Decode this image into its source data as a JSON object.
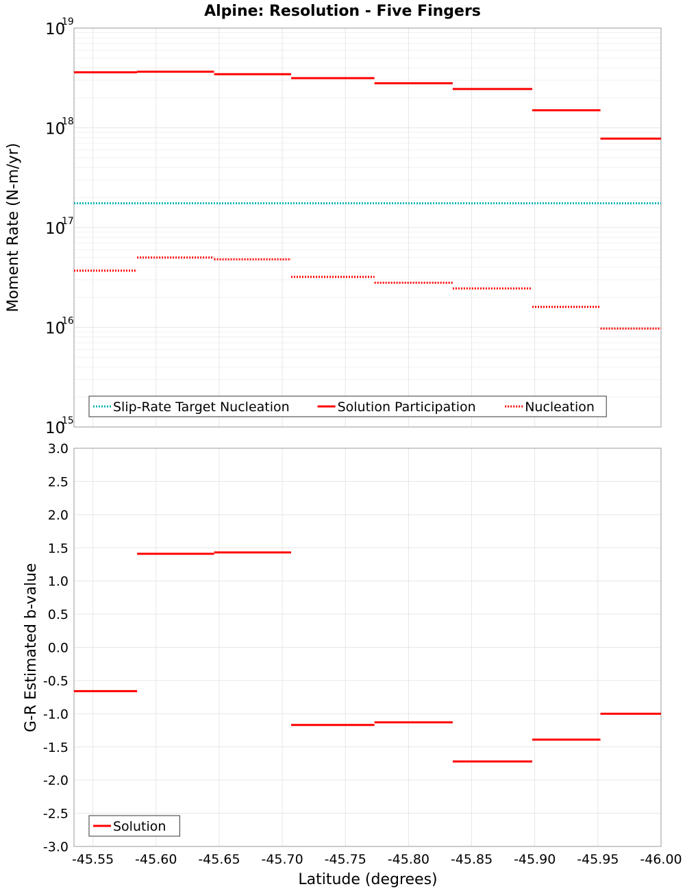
{
  "title": "Alpine: Resolution - Five Fingers",
  "colors": {
    "solution": "#ff0000",
    "target": "#00b3b3",
    "grid": "#e6e6e6",
    "minor_grid": "#f0f0f0",
    "frame": "#999999"
  },
  "chart_data": [
    {
      "type": "line",
      "panel": "top",
      "ylabel": "Moment Rate (N-m/yr)",
      "yscale": "log",
      "ylim": [
        1000000000000000.0,
        1e+19
      ],
      "ytick_base": "10",
      "ytick_exponents": [
        "15",
        "16",
        "17",
        "18",
        "19"
      ],
      "xlim": [
        -45.535,
        -46.0
      ],
      "legend_position": "bottom-left",
      "legend": [
        {
          "label": "Slip-Rate Target Nucleation",
          "color": "#00b3b3",
          "style": "dotted"
        },
        {
          "label": "Solution Participation",
          "color": "#ff0000",
          "style": "solid"
        },
        {
          "label": "Nucleation",
          "color": "#ff0000",
          "style": "dotted"
        }
      ],
      "series": [
        {
          "name": "Slip-Rate Target Nucleation",
          "style": "dotted",
          "color": "#00b3b3",
          "segments": [
            {
              "x0": -45.535,
              "x1": -46.0,
              "y": 1.75e+17
            }
          ]
        },
        {
          "name": "Solution Participation",
          "style": "solid",
          "color": "#ff0000",
          "segments": [
            {
              "x0": -45.535,
              "x1": -45.585,
              "y": 3.6e+18
            },
            {
              "x0": -45.585,
              "x1": -45.646,
              "y": 3.65e+18
            },
            {
              "x0": -45.646,
              "x1": -45.707,
              "y": 3.45e+18
            },
            {
              "x0": -45.707,
              "x1": -45.773,
              "y": 3.15e+18
            },
            {
              "x0": -45.773,
              "x1": -45.835,
              "y": 2.8e+18
            },
            {
              "x0": -45.835,
              "x1": -45.898,
              "y": 2.45e+18
            },
            {
              "x0": -45.898,
              "x1": -45.952,
              "y": 1.5e+18
            },
            {
              "x0": -45.952,
              "x1": -46.0,
              "y": 7.8e+17
            }
          ]
        },
        {
          "name": "Nucleation",
          "style": "dotted",
          "color": "#ff0000",
          "segments": [
            {
              "x0": -45.535,
              "x1": -45.585,
              "y": 3.7e+16
            },
            {
              "x0": -45.585,
              "x1": -45.646,
              "y": 5e+16
            },
            {
              "x0": -45.646,
              "x1": -45.707,
              "y": 4.8e+16
            },
            {
              "x0": -45.707,
              "x1": -45.773,
              "y": 3.2e+16
            },
            {
              "x0": -45.773,
              "x1": -45.835,
              "y": 2.8e+16
            },
            {
              "x0": -45.835,
              "x1": -45.898,
              "y": 2.45e+16
            },
            {
              "x0": -45.898,
              "x1": -45.952,
              "y": 1.6e+16
            },
            {
              "x0": -45.952,
              "x1": -46.0,
              "y": 9700000000000000.0
            }
          ]
        }
      ]
    },
    {
      "type": "line",
      "panel": "bottom",
      "xlabel": "Latitude (degrees)",
      "ylabel": "G-R Estimated b-value",
      "ylim": [
        -3.0,
        3.0
      ],
      "yticks": [
        "3.0",
        "2.5",
        "2.0",
        "1.5",
        "1.0",
        "0.5",
        "0.0",
        "-0.5",
        "-1.0",
        "-1.5",
        "-2.0",
        "-2.5",
        "-3.0"
      ],
      "xlim": [
        -45.535,
        -46.0
      ],
      "xticks": [
        "-45.55",
        "-45.60",
        "-45.65",
        "-45.70",
        "-45.75",
        "-45.80",
        "-45.85",
        "-45.90",
        "-45.95",
        "-46.00"
      ],
      "legend_position": "bottom-left",
      "legend": [
        {
          "label": "Solution",
          "color": "#ff0000",
          "style": "solid"
        }
      ],
      "series": [
        {
          "name": "Solution",
          "style": "solid",
          "color": "#ff0000",
          "segments": [
            {
              "x0": -45.535,
              "x1": -45.585,
              "y": -0.66
            },
            {
              "x0": -45.585,
              "x1": -45.646,
              "y": 1.41
            },
            {
              "x0": -45.646,
              "x1": -45.707,
              "y": 1.43
            },
            {
              "x0": -45.707,
              "x1": -45.773,
              "y": -1.17
            },
            {
              "x0": -45.773,
              "x1": -45.835,
              "y": -1.13
            },
            {
              "x0": -45.835,
              "x1": -45.898,
              "y": -1.72
            },
            {
              "x0": -45.898,
              "x1": -45.952,
              "y": -1.39
            },
            {
              "x0": -45.952,
              "x1": -46.0,
              "y": -1.0
            }
          ]
        }
      ]
    }
  ]
}
